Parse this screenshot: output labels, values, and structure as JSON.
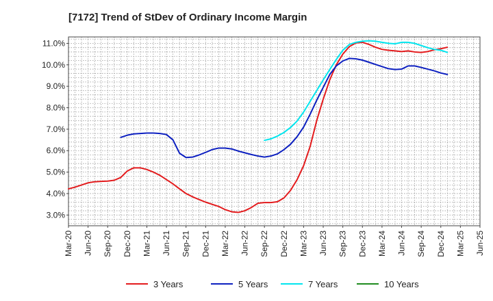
{
  "chart_data": {
    "type": "line",
    "title": "[7172]  Trend of StDev of Ordinary Income Margin",
    "xlabel": "",
    "ylabel": "",
    "x": [
      "Mar-20",
      "Jun-20",
      "Sep-20",
      "Dec-20",
      "Mar-21",
      "Jun-21",
      "Sep-21",
      "Dec-21",
      "Mar-22",
      "Jun-22",
      "Sep-22",
      "Dec-22",
      "Mar-23",
      "Jun-23",
      "Sep-23",
      "Dec-23",
      "Mar-24",
      "Jun-24",
      "Sep-24",
      "Dec-24",
      "Mar-25",
      "Jun-25"
    ],
    "y_ticks": [
      "3.0%",
      "4.0%",
      "5.0%",
      "6.0%",
      "7.0%",
      "8.0%",
      "9.0%",
      "10.0%",
      "11.0%"
    ],
    "ylim": [
      2.5,
      11.3
    ],
    "grid": true,
    "legend_position": "bottom",
    "series": [
      {
        "name": "3 Years",
        "color": "#e31a1c",
        "points": [
          [
            0,
            4.22
          ],
          [
            0.333,
            4.3
          ],
          [
            0.667,
            4.4
          ],
          [
            1,
            4.5
          ],
          [
            1.333,
            4.55
          ],
          [
            1.667,
            4.57
          ],
          [
            2,
            4.58
          ],
          [
            2.333,
            4.62
          ],
          [
            2.667,
            4.75
          ],
          [
            3,
            5.05
          ],
          [
            3.333,
            5.2
          ],
          [
            3.667,
            5.2
          ],
          [
            4,
            5.12
          ],
          [
            4.333,
            5.0
          ],
          [
            4.667,
            4.85
          ],
          [
            5,
            4.65
          ],
          [
            5.333,
            4.45
          ],
          [
            5.667,
            4.22
          ],
          [
            6,
            4.0
          ],
          [
            6.333,
            3.85
          ],
          [
            6.667,
            3.72
          ],
          [
            7,
            3.6
          ],
          [
            7.333,
            3.5
          ],
          [
            7.667,
            3.4
          ],
          [
            8,
            3.25
          ],
          [
            8.333,
            3.15
          ],
          [
            8.667,
            3.12
          ],
          [
            9,
            3.2
          ],
          [
            9.333,
            3.35
          ],
          [
            9.667,
            3.55
          ],
          [
            10,
            3.58
          ],
          [
            10.333,
            3.58
          ],
          [
            10.667,
            3.62
          ],
          [
            11,
            3.8
          ],
          [
            11.333,
            4.15
          ],
          [
            11.667,
            4.65
          ],
          [
            12,
            5.3
          ],
          [
            12.333,
            6.2
          ],
          [
            12.667,
            7.4
          ],
          [
            13,
            8.4
          ],
          [
            13.333,
            9.3
          ],
          [
            13.667,
            10.0
          ],
          [
            14,
            10.5
          ],
          [
            14.333,
            10.85
          ],
          [
            14.667,
            11.02
          ],
          [
            15,
            11.05
          ],
          [
            15.333,
            10.95
          ],
          [
            15.667,
            10.82
          ],
          [
            16,
            10.72
          ],
          [
            16.333,
            10.68
          ],
          [
            16.667,
            10.65
          ],
          [
            17,
            10.62
          ],
          [
            17.333,
            10.65
          ],
          [
            17.667,
            10.6
          ],
          [
            18,
            10.58
          ],
          [
            18.333,
            10.62
          ],
          [
            18.667,
            10.7
          ],
          [
            19,
            10.75
          ],
          [
            19.333,
            10.82
          ]
        ]
      },
      {
        "name": "5 Years",
        "color": "#0c1fc0",
        "points": [
          [
            2.667,
            6.62
          ],
          [
            3,
            6.72
          ],
          [
            3.333,
            6.78
          ],
          [
            3.667,
            6.8
          ],
          [
            4,
            6.82
          ],
          [
            4.333,
            6.82
          ],
          [
            4.667,
            6.8
          ],
          [
            5,
            6.75
          ],
          [
            5.333,
            6.5
          ],
          [
            5.667,
            5.88
          ],
          [
            6,
            5.68
          ],
          [
            6.333,
            5.7
          ],
          [
            6.667,
            5.8
          ],
          [
            7,
            5.92
          ],
          [
            7.333,
            6.05
          ],
          [
            7.667,
            6.12
          ],
          [
            8,
            6.12
          ],
          [
            8.333,
            6.08
          ],
          [
            8.667,
            5.98
          ],
          [
            9,
            5.9
          ],
          [
            9.333,
            5.82
          ],
          [
            9.667,
            5.75
          ],
          [
            10,
            5.7
          ],
          [
            10.333,
            5.75
          ],
          [
            10.667,
            5.85
          ],
          [
            11,
            6.05
          ],
          [
            11.333,
            6.3
          ],
          [
            11.667,
            6.65
          ],
          [
            12,
            7.1
          ],
          [
            12.333,
            7.7
          ],
          [
            12.667,
            8.35
          ],
          [
            13,
            8.95
          ],
          [
            13.333,
            9.55
          ],
          [
            13.667,
            9.95
          ],
          [
            14,
            10.18
          ],
          [
            14.333,
            10.3
          ],
          [
            14.667,
            10.28
          ],
          [
            15,
            10.22
          ],
          [
            15.333,
            10.12
          ],
          [
            15.667,
            10.02
          ],
          [
            16,
            9.92
          ],
          [
            16.333,
            9.82
          ],
          [
            16.667,
            9.78
          ],
          [
            17,
            9.8
          ],
          [
            17.333,
            9.95
          ],
          [
            17.667,
            9.95
          ],
          [
            18,
            9.88
          ],
          [
            18.333,
            9.8
          ],
          [
            18.667,
            9.72
          ],
          [
            19,
            9.62
          ],
          [
            19.333,
            9.55
          ]
        ]
      },
      {
        "name": "7 Years",
        "color": "#00e5ee",
        "points": [
          [
            10,
            6.48
          ],
          [
            10.333,
            6.55
          ],
          [
            10.667,
            6.68
          ],
          [
            11,
            6.85
          ],
          [
            11.333,
            7.08
          ],
          [
            11.667,
            7.38
          ],
          [
            12,
            7.8
          ],
          [
            12.333,
            8.3
          ],
          [
            12.667,
            8.8
          ],
          [
            13,
            9.3
          ],
          [
            13.333,
            9.78
          ],
          [
            13.667,
            10.25
          ],
          [
            14,
            10.68
          ],
          [
            14.333,
            10.95
          ],
          [
            14.667,
            11.05
          ],
          [
            15,
            11.1
          ],
          [
            15.333,
            11.12
          ],
          [
            15.667,
            11.1
          ],
          [
            16,
            11.05
          ],
          [
            16.333,
            11.0
          ],
          [
            16.667,
            10.98
          ],
          [
            17,
            11.05
          ],
          [
            17.333,
            11.05
          ],
          [
            17.667,
            11.0
          ],
          [
            18,
            10.9
          ],
          [
            18.333,
            10.8
          ],
          [
            18.667,
            10.72
          ],
          [
            19,
            10.68
          ],
          [
            19.333,
            10.58
          ]
        ]
      },
      {
        "name": "10 Years",
        "color": "#1e8b1e",
        "points": []
      }
    ]
  }
}
